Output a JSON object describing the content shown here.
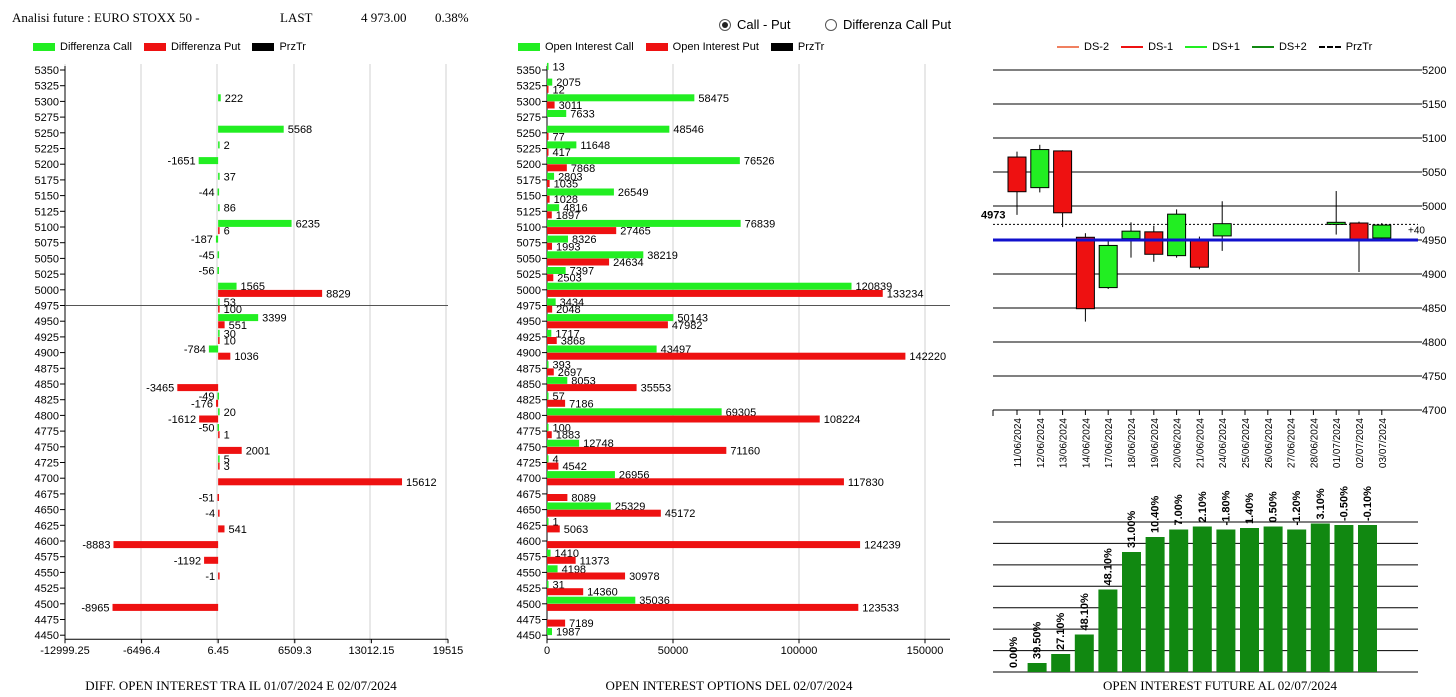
{
  "header": {
    "title": "Analisi future : EURO STOXX 50 -",
    "last_label": "LAST",
    "last_value": "4 973.00",
    "change_pct": "0.38%"
  },
  "radio": {
    "option1": "Call - Put",
    "option2": "Differenza Call Put",
    "selected": "Call - Put"
  },
  "colors": {
    "green": "#22ee22",
    "red": "#ee1111",
    "dark_green": "#118811",
    "blue": "#1111cc",
    "grid": "#d0d0d0"
  },
  "chart_data": [
    {
      "type": "bar",
      "orientation": "horizontal",
      "title": "DIFF. OPEN INTEREST TRA IL 01/07/2024 E 02/07/2024",
      "legend": [
        "Differenza Call",
        "Differenza Put",
        "PrzTr"
      ],
      "strikes": [
        "5350",
        "5325",
        "5300",
        "5275",
        "5250",
        "5225",
        "5200",
        "5175",
        "5150",
        "5125",
        "5100",
        "5075",
        "5050",
        "5025",
        "5000",
        "4975",
        "4950",
        "4925",
        "4900",
        "4875",
        "4850",
        "4825",
        "4800",
        "4775",
        "4750",
        "4725",
        "4700",
        "4675",
        "4650",
        "4625",
        "4600",
        "4575",
        "4550",
        "4525",
        "4500",
        "4475",
        "4450"
      ],
      "x_ticks": [
        "-12999.25",
        "-6496.4",
        "6.45",
        "6509.3",
        "13012.15",
        "19515"
      ],
      "xlim": [
        -12999.25,
        19515
      ],
      "price_line": "4975",
      "call": [
        {
          "strike": "5300",
          "value": 222
        },
        {
          "strike": "5250",
          "value": 5568
        },
        {
          "strike": "5225",
          "value": 2
        },
        {
          "strike": "5200",
          "value": -1651
        },
        {
          "strike": "5175",
          "value": 37
        },
        {
          "strike": "5150",
          "value": -44
        },
        {
          "strike": "5125",
          "value": 86
        },
        {
          "strike": "5100",
          "value": 6235
        },
        {
          "strike": "5075",
          "value": -187
        },
        {
          "strike": "5050",
          "value": -45
        },
        {
          "strike": "5025",
          "value": -56
        },
        {
          "strike": "5000",
          "value": 1565
        },
        {
          "strike": "4975",
          "value": 53
        },
        {
          "strike": "4950",
          "value": 3399
        },
        {
          "strike": "4925",
          "value": 30
        },
        {
          "strike": "4900",
          "value": -784
        },
        {
          "strike": "4825",
          "value": -49
        },
        {
          "strike": "4800",
          "value": 20
        },
        {
          "strike": "4775",
          "value": -50
        },
        {
          "strike": "4725",
          "value": 5
        }
      ],
      "put": [
        {
          "strike": "5100",
          "value": 6
        },
        {
          "strike": "5000",
          "value": 8829
        },
        {
          "strike": "4975",
          "value": 100
        },
        {
          "strike": "4950",
          "value": 551
        },
        {
          "strike": "4925",
          "value": 10
        },
        {
          "strike": "4900",
          "value": 1036
        },
        {
          "strike": "4850",
          "value": -3465
        },
        {
          "strike": "4825",
          "value": -176
        },
        {
          "strike": "4800",
          "value": -1612
        },
        {
          "strike": "4775",
          "value": 1
        },
        {
          "strike": "4750",
          "value": 2001
        },
        {
          "strike": "4725",
          "value": 3
        },
        {
          "strike": "4700",
          "value": 15612
        },
        {
          "strike": "4675",
          "value": -51
        },
        {
          "strike": "4650",
          "value": -4
        },
        {
          "strike": "4625",
          "value": 541
        },
        {
          "strike": "4600",
          "value": -8883
        },
        {
          "strike": "4575",
          "value": -1192
        },
        {
          "strike": "4550",
          "value": -1
        },
        {
          "strike": "4500",
          "value": -8965
        }
      ]
    },
    {
      "type": "bar",
      "orientation": "horizontal",
      "title": "OPEN INTEREST OPTIONS DEL 02/07/2024",
      "legend": [
        "Open Interest Call",
        "Open Interest Put",
        "PrzTr"
      ],
      "x_ticks": [
        "0",
        "50000",
        "100000",
        "150000"
      ],
      "xlim": [
        0,
        150000
      ],
      "price_line": "4975",
      "call": [
        {
          "strike": "5350",
          "value": 13
        },
        {
          "strike": "5325",
          "value": 2075
        },
        {
          "strike": "5300",
          "value": 58475
        },
        {
          "strike": "5275",
          "value": 7633
        },
        {
          "strike": "5250",
          "value": 48546
        },
        {
          "strike": "5225",
          "value": 11648
        },
        {
          "strike": "5200",
          "value": 76526
        },
        {
          "strike": "5175",
          "value": 2803
        },
        {
          "strike": "5150",
          "value": 26549
        },
        {
          "strike": "5125",
          "value": 4816
        },
        {
          "strike": "5100",
          "value": 76839
        },
        {
          "strike": "5075",
          "value": 8326
        },
        {
          "strike": "5050",
          "value": 38219
        },
        {
          "strike": "5025",
          "value": 7397
        },
        {
          "strike": "5000",
          "value": 120839
        },
        {
          "strike": "4975",
          "value": 3434
        },
        {
          "strike": "4950",
          "value": 50143
        },
        {
          "strike": "4925",
          "value": 1717
        },
        {
          "strike": "4900",
          "value": 43497
        },
        {
          "strike": "4875",
          "value": 393
        },
        {
          "strike": "4850",
          "value": 8053
        },
        {
          "strike": "4825",
          "value": 57
        },
        {
          "strike": "4800",
          "value": 69305
        },
        {
          "strike": "4775",
          "value": 100
        },
        {
          "strike": "4750",
          "value": 12748
        },
        {
          "strike": "4725",
          "value": 4
        },
        {
          "strike": "4700",
          "value": 26956
        },
        {
          "strike": "4650",
          "value": 25329
        },
        {
          "strike": "4625",
          "value": 1
        },
        {
          "strike": "4575",
          "value": 1410
        },
        {
          "strike": "4550",
          "value": 4198
        },
        {
          "strike": "4525",
          "value": 31
        },
        {
          "strike": "4500",
          "value": 35036
        },
        {
          "strike": "4450",
          "value": 1987
        }
      ],
      "put": [
        {
          "strike": "5325",
          "value": 12
        },
        {
          "strike": "5300",
          "value": 3011
        },
        {
          "strike": "5250",
          "value": 77
        },
        {
          "strike": "5225",
          "value": 417
        },
        {
          "strike": "5200",
          "value": 7868
        },
        {
          "strike": "5175",
          "value": 1035
        },
        {
          "strike": "5150",
          "value": 1028
        },
        {
          "strike": "5125",
          "value": 1897
        },
        {
          "strike": "5100",
          "value": 27465
        },
        {
          "strike": "5075",
          "value": 1993
        },
        {
          "strike": "5050",
          "value": 24634
        },
        {
          "strike": "5025",
          "value": 2503
        },
        {
          "strike": "5000",
          "value": 133234
        },
        {
          "strike": "4975",
          "value": 2048
        },
        {
          "strike": "4950",
          "value": 47982
        },
        {
          "strike": "4925",
          "value": 3868
        },
        {
          "strike": "4900",
          "value": 142220
        },
        {
          "strike": "4875",
          "value": 2697
        },
        {
          "strike": "4850",
          "value": 35553
        },
        {
          "strike": "4825",
          "value": 7186
        },
        {
          "strike": "4800",
          "value": 108224
        },
        {
          "strike": "4775",
          "value": 1883
        },
        {
          "strike": "4750",
          "value": 71160
        },
        {
          "strike": "4725",
          "value": 4542
        },
        {
          "strike": "4700",
          "value": 117830
        },
        {
          "strike": "4675",
          "value": 8089
        },
        {
          "strike": "4650",
          "value": 45172
        },
        {
          "strike": "4625",
          "value": 5063
        },
        {
          "strike": "4600",
          "value": 124239
        },
        {
          "strike": "4575",
          "value": 11373
        },
        {
          "strike": "4550",
          "value": 30978
        },
        {
          "strike": "4525",
          "value": 14360
        },
        {
          "strike": "4500",
          "value": 123533
        },
        {
          "strike": "4475",
          "value": 7189
        }
      ]
    },
    {
      "type": "candlestick",
      "legend": [
        "DS-2",
        "DS-1",
        "DS+1",
        "DS+2",
        "PrzTr"
      ],
      "y_ticks": [
        5200,
        5150,
        5100,
        5050,
        5000,
        4950,
        4900,
        4850,
        4800,
        4750,
        4700
      ],
      "ylim": [
        4700,
        5200
      ],
      "price_label": "4973",
      "price_value": 4973,
      "blue_line_value": 4950,
      "annotation": "+40",
      "dates": [
        "11/06/2024",
        "12/06/2024",
        "13/06/2024",
        "14/06/2024",
        "17/06/2024",
        "18/06/2024",
        "19/06/2024",
        "20/06/2024",
        "21/06/2024",
        "24/06/2024",
        "25/06/2024",
        "26/06/2024",
        "27/06/2024",
        "28/06/2024",
        "01/07/2024",
        "02/07/2024",
        "03/07/2024"
      ],
      "candles": [
        {
          "date": "11/06/2024",
          "open": 5072,
          "close": 5021,
          "high": 5080,
          "low": 4987
        },
        {
          "date": "12/06/2024",
          "open": 5027,
          "close": 5083,
          "high": 5090,
          "low": 5020
        },
        {
          "date": "13/06/2024",
          "open": 5081,
          "close": 4990,
          "high": 5082,
          "low": 4969
        },
        {
          "date": "14/06/2024",
          "open": 4954,
          "close": 4849,
          "high": 4960,
          "low": 4830
        },
        {
          "date": "17/06/2024",
          "open": 4880,
          "close": 4942,
          "high": 4950,
          "low": 4878
        },
        {
          "date": "18/06/2024",
          "open": 4952,
          "close": 4963,
          "high": 4976,
          "low": 4924
        },
        {
          "date": "19/06/2024",
          "open": 4962,
          "close": 4929,
          "high": 4971,
          "low": 4918
        },
        {
          "date": "20/06/2024",
          "open": 4927,
          "close": 4988,
          "high": 4995,
          "low": 4924
        },
        {
          "date": "21/06/2024",
          "open": 4950,
          "close": 4910,
          "high": 4955,
          "low": 4907
        },
        {
          "date": "24/06/2024",
          "open": 4956,
          "close": 4974,
          "high": 5007,
          "low": 4934
        },
        {
          "date": "01/07/2024",
          "open": 4973,
          "close": 4976,
          "high": 5022,
          "low": 4958
        },
        {
          "date": "02/07/2024",
          "open": 4975,
          "close": 4950,
          "high": 4977,
          "low": 4903
        },
        {
          "date": "03/07/2024",
          "open": 4953,
          "close": 4972,
          "high": 4975,
          "low": 4950
        }
      ]
    },
    {
      "type": "bar",
      "title": "OPEN INTEREST FUTURE AL 02/07/2024",
      "value_labels": [
        "0.00%",
        "39.50%",
        "27.10%",
        "48.10%",
        "48.10%",
        "31.00%",
        "10.40%",
        "7.00%",
        "2.10%",
        "-1.80%",
        "1.40%",
        "0.50%",
        "-1.20%",
        "3.10%",
        "-0.50%",
        "-0.10%"
      ],
      "values": [
        0.0,
        0.06,
        0.12,
        0.25,
        0.55,
        0.8,
        0.9,
        0.95,
        0.97,
        0.95,
        0.96,
        0.97,
        0.95,
        0.99,
        0.98,
        0.98
      ]
    }
  ]
}
